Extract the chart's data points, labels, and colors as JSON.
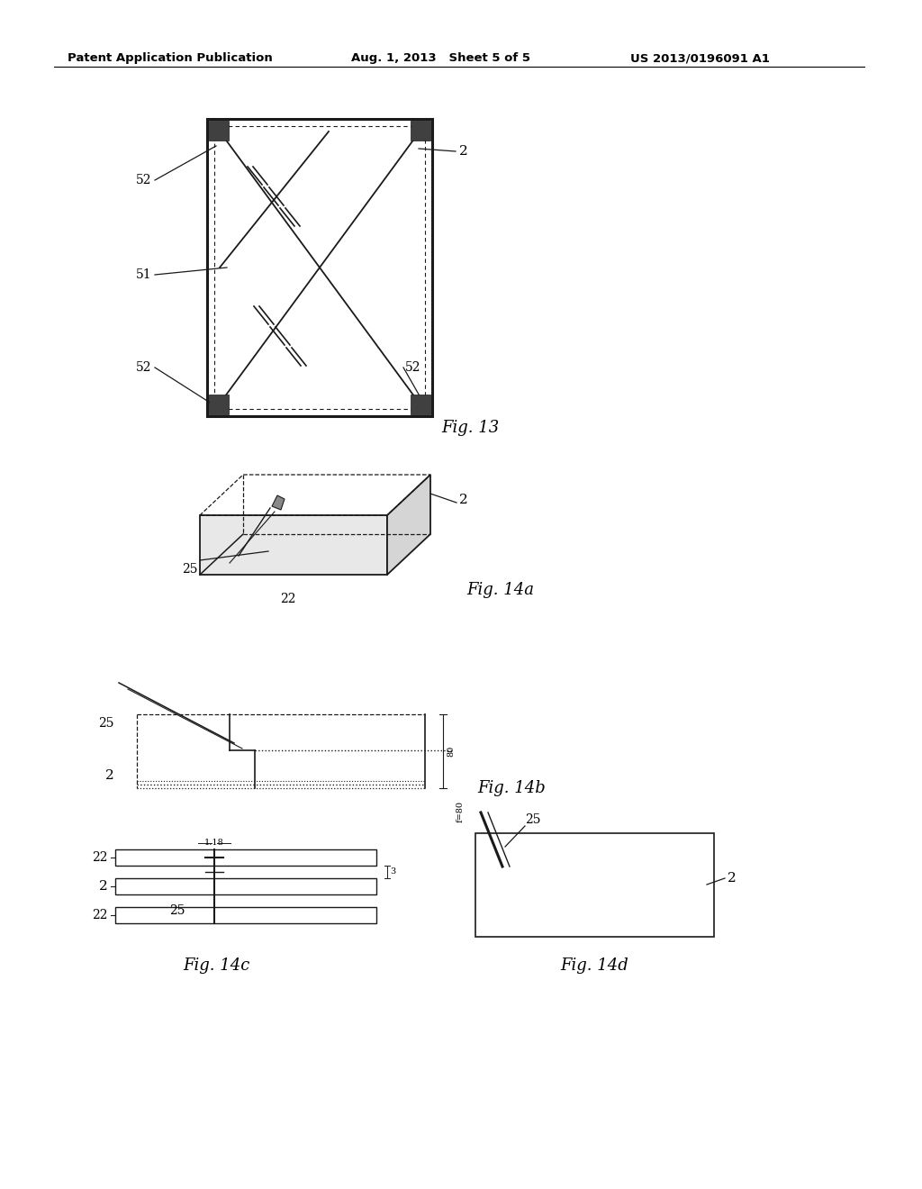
{
  "bg_color": "#ffffff",
  "header_left": "Patent Application Publication",
  "header_mid": "Aug. 1, 2013   Sheet 5 of 5",
  "header_right": "US 2013/0196091 A1",
  "fig13_label": "Fig. 13",
  "fig14a_label": "Fig. 14a",
  "fig14b_label": "Fig. 14b",
  "fig14c_label": "Fig. 14c",
  "fig14d_label": "Fig. 14d",
  "dark_color": "#404040",
  "line_color": "#1a1a1a"
}
